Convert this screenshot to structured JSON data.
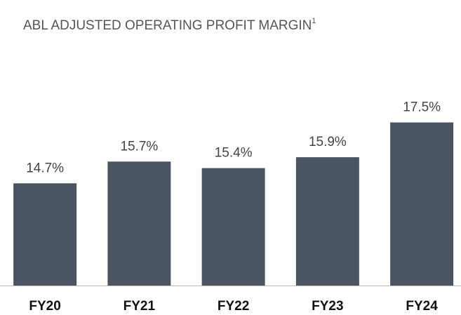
{
  "chart_data": {
    "type": "bar",
    "title": "ABL ADJUSTED OPERATING PROFIT MARGIN",
    "title_note": "1",
    "categories": [
      "FY20",
      "FY21",
      "FY22",
      "FY23",
      "FY24"
    ],
    "values": [
      14.7,
      15.7,
      15.4,
      15.9,
      17.5
    ],
    "value_labels": [
      "14.7%",
      "15.7%",
      "15.4%",
      "15.9%",
      "17.5%"
    ],
    "color": "#4a5561",
    "ylim": [
      10,
      18.5
    ]
  }
}
